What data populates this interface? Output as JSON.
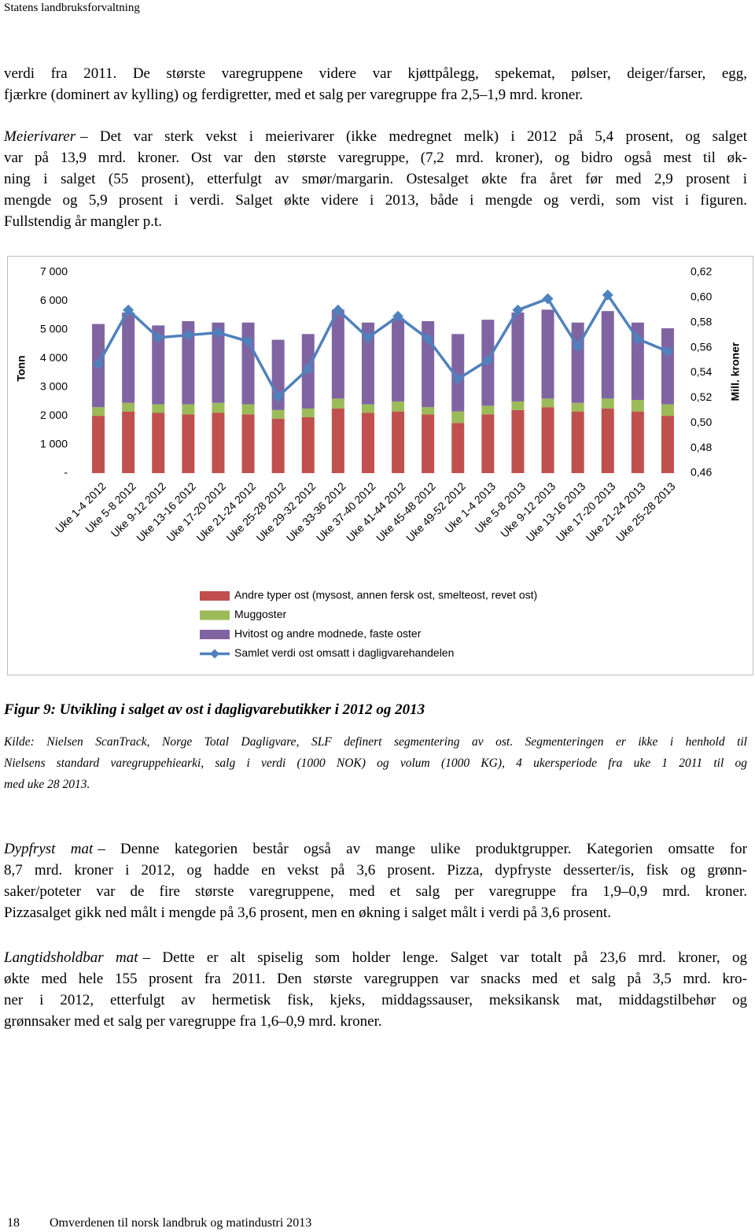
{
  "header": {
    "title": "Statens landbruksforvaltning"
  },
  "paragraphs": [
    {
      "lines": [
        "verdi fra 2011. De største varegruppene videre var kjøttpålegg, spekemat, pølser, deiger/farser, egg,",
        "fjærkre (dominert av kylling) og ferdigretter, med et salg per varegruppe fra 2,5–1,9 mrd. kroner."
      ]
    },
    {
      "lead": "Meierivarer",
      "lines": [
        "– Det var sterk vekst i meierivarer (ikke medregnet melk) i 2012 på 5,4 prosent, og salget",
        "var på 13,9 mrd. kroner. Ost var den største varegruppe, (7,2 mrd. kroner), og bidro også mest til øk-",
        "ning i salget (55 prosent), etterfulgt av smør/margarin. Ostesalget økte fra året før med 2,9 prosent i",
        "mengde og 5,9 prosent i verdi. Salget økte videre i 2013, både i mengde og verdi, som vist i figuren.",
        "Fullstendig år mangler p.t."
      ]
    },
    {
      "lead": "Dypfryst mat",
      "lines": [
        "– Denne kategorien består også av mange ulike produktgrupper. Kategorien omsatte for",
        "8,7 mrd. kroner i 2012, og hadde en vekst på 3,6 prosent. Pizza, dypfryste desserter/is, fisk og grønn-",
        "saker/poteter var de fire største varegruppene, med et salg per varegruppe fra 1,9–0,9 mrd. kroner.",
        "Pizzasalget gikk ned målt i mengde på 3,6 prosent, men en økning i salget målt i verdi på 3,6 prosent."
      ]
    },
    {
      "lead": "Langtidsholdbar mat",
      "lines": [
        "– Dette er alt spiselig som holder lenge. Salget var totalt på 23,6 mrd. kroner, og",
        "økte med hele 155 prosent fra 2011. Den største varegruppen var snacks med et salg på 3,5 mrd. kro-",
        "ner i 2012, etterfulgt av hermetisk fisk, kjeks, middagssauser, meksikansk mat, middagstilbehør og",
        "grønnsaker med et salg per varegruppe fra 1,6–0,9 mrd. kroner."
      ]
    }
  ],
  "figure": {
    "caption": "Figur 9: Utvikling i salget av ost i dagligvarebutikker i 2012 og 2013",
    "source": [
      "Kilde: Nielsen ScanTrack, Norge Total Dagligvare, SLF definert segmentering av ost. Segmenteringen er ikke i henhold til",
      "Nielsens standard varegruppehiearki, salg i verdi (1000 NOK) og volum (1000 KG), 4 ukersperiode fra uke 1 2011 til og",
      "med uke 28 2013."
    ]
  },
  "chart_data": {
    "type": "bar",
    "stacked": true,
    "ylabel": "Tonn",
    "y2label": "Mill. kroner",
    "categories": [
      "Uke 1-4 2012",
      "Uke 5-8 2012",
      "Uke 9-12 2012",
      "Uke 13-16 2012",
      "Uke 17-20 2012",
      "Uke 21-24 2012",
      "Uke 25-28 2012",
      "Uke 29-32 2012",
      "Uke 33-36 2012",
      "Uke 37-40 2012",
      "Uke 41-44 2012",
      "Uke 45-48 2012",
      "Uke 49-52 2012",
      "Uke 1-4 2013",
      "Uke 5-8 2013",
      "Uke 9-12 2013",
      "Uke 13-16 2013",
      "Uke 17-20 2013",
      "Uke 21-24 2013",
      "Uke 25-28 2013"
    ],
    "series": [
      {
        "name": "Andre typer ost (mysost, annen fersk ost, smelteost, revet ost)",
        "color": "#c0504d",
        "values": [
          2000,
          2150,
          2100,
          2050,
          2100,
          2050,
          1900,
          1950,
          2250,
          2100,
          2150,
          2050,
          1750,
          2050,
          2200,
          2300,
          2150,
          2250,
          2150,
          2000
        ]
      },
      {
        "name": "Muggoster",
        "color": "#9bbb59",
        "values": [
          300,
          300,
          300,
          350,
          350,
          350,
          300,
          300,
          350,
          300,
          350,
          250,
          400,
          300,
          300,
          300,
          300,
          350,
          400,
          400
        ]
      },
      {
        "name": "Hvitost og andre modnede, faste oster",
        "color": "#8064a2",
        "values": [
          2900,
          3150,
          2750,
          2900,
          2800,
          2850,
          2450,
          2600,
          3100,
          2850,
          2900,
          3000,
          2700,
          3000,
          3100,
          3100,
          2800,
          3050,
          2700,
          2650
        ]
      },
      {
        "name": "Samlet verdi ost omsatt i dagligvarehandelen",
        "color": "#4f81bd",
        "type": "line",
        "axis": "y2",
        "values": [
          0.547,
          0.59,
          0.568,
          0.57,
          0.572,
          0.565,
          0.521,
          0.543,
          0.59,
          0.568,
          0.585,
          0.567,
          0.535,
          0.55,
          0.59,
          0.599,
          0.561,
          0.602,
          0.567,
          0.557
        ]
      }
    ],
    "ylim": [
      0,
      7000
    ],
    "yticks": [
      {
        "value": 0,
        "label": "-"
      },
      {
        "value": 1000,
        "label": "1 000"
      },
      {
        "value": 2000,
        "label": "2 000"
      },
      {
        "value": 3000,
        "label": "3 000"
      },
      {
        "value": 4000,
        "label": "4 000"
      },
      {
        "value": 5000,
        "label": "5 000"
      },
      {
        "value": 6000,
        "label": "6 000"
      },
      {
        "value": 7000,
        "label": "7 000"
      }
    ],
    "y2lim": [
      0.46,
      0.62
    ],
    "y2ticks": [
      {
        "value": 0.46,
        "label": "0,46"
      },
      {
        "value": 0.48,
        "label": "0,48"
      },
      {
        "value": 0.5,
        "label": "0,50"
      },
      {
        "value": 0.52,
        "label": "0,52"
      },
      {
        "value": 0.54,
        "label": "0,54"
      },
      {
        "value": 0.56,
        "label": "0,56"
      },
      {
        "value": 0.58,
        "label": "0,58"
      },
      {
        "value": 0.6,
        "label": "0,60"
      },
      {
        "value": 0.62,
        "label": "0,62"
      }
    ],
    "legend": "bottom"
  },
  "footer": {
    "page": "18",
    "title": "Omverdenen til norsk landbruk og matindustri 2013"
  }
}
